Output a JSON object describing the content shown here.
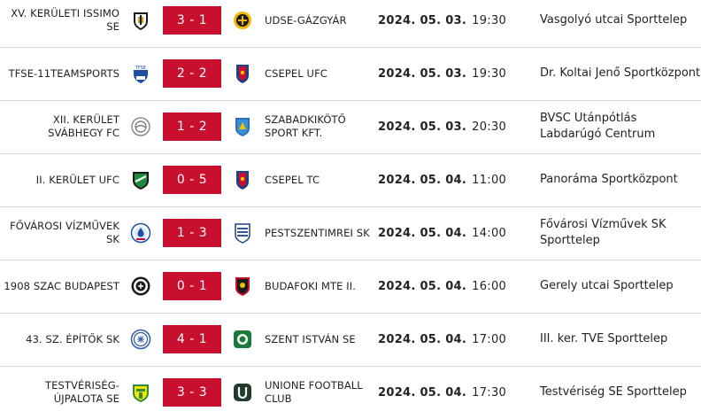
{
  "matches": [
    {
      "home": "XV. KERÜLETI ISSIMO SE",
      "home_logo": "issimo-crest-icon",
      "score": "3 - 1",
      "away": "UDSE-GÁZGYÁR",
      "away_logo": "udse-crest-icon",
      "date": "2024. 05. 03.",
      "time": "19:30",
      "venue": "Vasgolyó utcai Sporttelep"
    },
    {
      "home": "TFSE-11TEAMSPORTS",
      "home_logo": "tfse-crest-icon",
      "score": "2 - 2",
      "away": "CSEPEL UFC",
      "away_logo": "csepel-ufc-crest-icon",
      "date": "2024. 05. 03.",
      "time": "19:30",
      "venue": "Dr. Koltai Jenő Sportközpont"
    },
    {
      "home": "XII. KERÜLET SVÁBHEGY FC",
      "home_logo": "svabhegy-crest-icon",
      "score": "1 - 2",
      "away": "SZABADKIKÖTŐ SPORT KFT.",
      "away_logo": "szabadkikoto-crest-icon",
      "date": "2024. 05. 03.",
      "time": "20:30",
      "venue": "BVSC Utánpótlás Labdarúgó Centrum"
    },
    {
      "home": "II. KERÜLET UFC",
      "home_logo": "ii-kerulet-ufc-crest-icon",
      "score": "0 - 5",
      "away": "CSEPEL TC",
      "away_logo": "csepel-tc-crest-icon",
      "date": "2024. 05. 04.",
      "time": "11:00",
      "venue": "Panoráma Sportközpont"
    },
    {
      "home": "FŐVÁROSI VÍZMŰVEK SK",
      "home_logo": "vizmuvek-crest-icon",
      "score": "1 - 3",
      "away": "PESTSZENTIMREI SK",
      "away_logo": "pestszentimrei-crest-icon",
      "date": "2024. 05. 04.",
      "time": "14:00",
      "venue": "Fővárosi Vízművek SK Sporttelep"
    },
    {
      "home": "1908 SZAC BUDAPEST",
      "home_logo": "szac-crest-icon",
      "score": "0 - 1",
      "away": "BUDAFOKI MTE II.",
      "away_logo": "budafoki-crest-icon",
      "date": "2024. 05. 04.",
      "time": "16:00",
      "venue": "Gerely utcai Sporttelep"
    },
    {
      "home": "43. SZ. ÉPÍTŐK SK",
      "home_logo": "epitok-crest-icon",
      "score": "4 - 1",
      "away": "SZENT ISTVÁN SE",
      "away_logo": "szent-istvan-crest-icon",
      "date": "2024. 05. 04.",
      "time": "17:00",
      "venue": "III. ker. TVE Sporttelep"
    },
    {
      "home": "TESTVÉRISÉG-ÚJPALOTA SE",
      "home_logo": "testveriseg-crest-icon",
      "score": "3 - 3",
      "away": "UNIONE FOOTBALL CLUB",
      "away_logo": "unione-crest-icon",
      "date": "2024. 05. 04.",
      "time": "17:30",
      "venue": "Testvériség SE Sporttelep"
    }
  ],
  "colors": {
    "score_bg": "#c8102e",
    "divider": "#d6d6d6",
    "text": "#222222"
  }
}
